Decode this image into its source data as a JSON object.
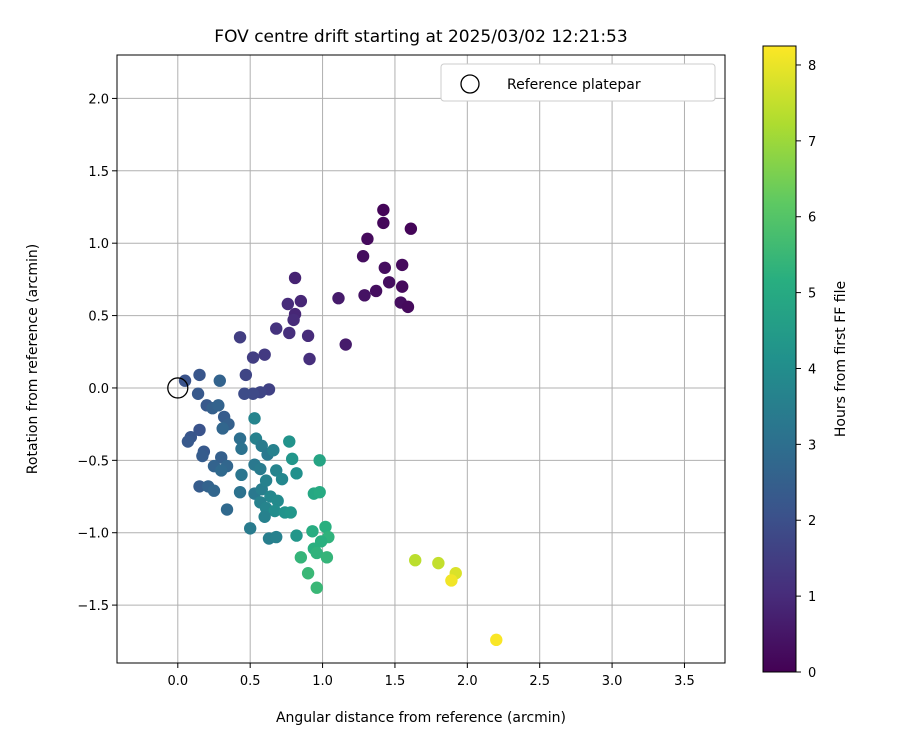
{
  "chart_data": {
    "type": "scatter",
    "title": "FOV centre drift starting at 2025/03/02 12:21:53",
    "xlabel": "Angular distance from reference (arcmin)",
    "ylabel": "Rotation from reference (arcmin)",
    "xlim": [
      -0.42,
      3.78
    ],
    "ylim": [
      -1.9,
      2.3
    ],
    "xticks": [
      "0.0",
      "0.5",
      "1.0",
      "1.5",
      "2.0",
      "2.5",
      "3.0",
      "3.5"
    ],
    "xtick_values": [
      0,
      0.5,
      1.0,
      1.5,
      2.0,
      2.5,
      3.0,
      3.5
    ],
    "yticks": [
      "2.0",
      "1.5",
      "1.0",
      "0.5",
      "0.0",
      "−0.5",
      "−1.0",
      "−1.5"
    ],
    "ytick_values": [
      2.0,
      1.5,
      1.0,
      0.5,
      0.0,
      -0.5,
      -1.0,
      -1.5
    ],
    "grid": true,
    "legend": {
      "label": "Reference platepar",
      "placement": "top-right"
    },
    "reference_point": {
      "x": 0.0,
      "y": 0.0
    },
    "colorbar": {
      "label": "Hours from first FF file",
      "colormap": "viridis",
      "range": [
        0,
        8.25
      ],
      "ticks": [
        "0",
        "1",
        "2",
        "3",
        "4",
        "5",
        "6",
        "7",
        "8"
      ],
      "tick_values": [
        0,
        1,
        2,
        3,
        4,
        5,
        6,
        7,
        8
      ]
    },
    "points": [
      {
        "x": 1.42,
        "y": 1.23,
        "t": 0.1
      },
      {
        "x": 1.42,
        "y": 1.14,
        "t": 0.15
      },
      {
        "x": 1.61,
        "y": 1.1,
        "t": 0.1
      },
      {
        "x": 1.31,
        "y": 1.03,
        "t": 0.2
      },
      {
        "x": 1.28,
        "y": 0.91,
        "t": 0.3
      },
      {
        "x": 1.55,
        "y": 0.85,
        "t": 0.2
      },
      {
        "x": 1.43,
        "y": 0.83,
        "t": 0.3
      },
      {
        "x": 1.46,
        "y": 0.73,
        "t": 0.3
      },
      {
        "x": 1.55,
        "y": 0.7,
        "t": 0.2
      },
      {
        "x": 1.37,
        "y": 0.67,
        "t": 0.3
      },
      {
        "x": 1.29,
        "y": 0.64,
        "t": 0.4
      },
      {
        "x": 1.54,
        "y": 0.59,
        "t": 0.3
      },
      {
        "x": 1.59,
        "y": 0.56,
        "t": 0.2
      },
      {
        "x": 1.11,
        "y": 0.62,
        "t": 0.6
      },
      {
        "x": 1.16,
        "y": 0.3,
        "t": 0.6
      },
      {
        "x": 0.81,
        "y": 0.76,
        "t": 0.8
      },
      {
        "x": 0.85,
        "y": 0.6,
        "t": 0.9
      },
      {
        "x": 0.76,
        "y": 0.58,
        "t": 1.0
      },
      {
        "x": 0.81,
        "y": 0.51,
        "t": 0.9
      },
      {
        "x": 0.8,
        "y": 0.47,
        "t": 1.0
      },
      {
        "x": 0.68,
        "y": 0.41,
        "t": 1.2
      },
      {
        "x": 0.77,
        "y": 0.38,
        "t": 1.1
      },
      {
        "x": 0.9,
        "y": 0.36,
        "t": 1.0
      },
      {
        "x": 0.91,
        "y": 0.2,
        "t": 1.1
      },
      {
        "x": 0.43,
        "y": 0.35,
        "t": 1.5
      },
      {
        "x": 0.6,
        "y": 0.23,
        "t": 1.4
      },
      {
        "x": 0.52,
        "y": 0.21,
        "t": 1.5
      },
      {
        "x": 0.47,
        "y": 0.09,
        "t": 1.7
      },
      {
        "x": 0.63,
        "y": -0.01,
        "t": 1.6
      },
      {
        "x": 0.57,
        "y": -0.03,
        "t": 1.7
      },
      {
        "x": 0.52,
        "y": -0.04,
        "t": 1.8
      },
      {
        "x": 0.46,
        "y": -0.04,
        "t": 1.9
      },
      {
        "x": 0.15,
        "y": 0.09,
        "t": 2.2
      },
      {
        "x": 0.05,
        "y": 0.05,
        "t": 2.1
      },
      {
        "x": 0.14,
        "y": -0.04,
        "t": 2.3
      },
      {
        "x": 0.29,
        "y": 0.05,
        "t": 2.6
      },
      {
        "x": 0.2,
        "y": -0.12,
        "t": 2.3
      },
      {
        "x": 0.24,
        "y": -0.14,
        "t": 2.5
      },
      {
        "x": 0.28,
        "y": -0.12,
        "t": 2.6
      },
      {
        "x": 0.32,
        "y": -0.2,
        "t": 2.4
      },
      {
        "x": 0.35,
        "y": -0.25,
        "t": 2.5
      },
      {
        "x": 0.31,
        "y": -0.28,
        "t": 2.7
      },
      {
        "x": 0.15,
        "y": -0.29,
        "t": 2.1
      },
      {
        "x": 0.09,
        "y": -0.34,
        "t": 2.2
      },
      {
        "x": 0.07,
        "y": -0.37,
        "t": 2.3
      },
      {
        "x": 0.18,
        "y": -0.44,
        "t": 2.3
      },
      {
        "x": 0.17,
        "y": -0.47,
        "t": 2.4
      },
      {
        "x": 0.3,
        "y": -0.48,
        "t": 2.5
      },
      {
        "x": 0.25,
        "y": -0.54,
        "t": 2.6
      },
      {
        "x": 0.34,
        "y": -0.54,
        "t": 2.7
      },
      {
        "x": 0.3,
        "y": -0.57,
        "t": 2.8
      },
      {
        "x": 0.15,
        "y": -0.68,
        "t": 2.4
      },
      {
        "x": 0.21,
        "y": -0.68,
        "t": 2.6
      },
      {
        "x": 0.25,
        "y": -0.71,
        "t": 2.7
      },
      {
        "x": 0.34,
        "y": -0.84,
        "t": 2.8
      },
      {
        "x": 0.43,
        "y": -0.35,
        "t": 3.0
      },
      {
        "x": 0.44,
        "y": -0.42,
        "t": 3.1
      },
      {
        "x": 0.53,
        "y": -0.21,
        "t": 3.7
      },
      {
        "x": 0.54,
        "y": -0.35,
        "t": 3.6
      },
      {
        "x": 0.58,
        "y": -0.4,
        "t": 3.4
      },
      {
        "x": 0.62,
        "y": -0.46,
        "t": 3.3
      },
      {
        "x": 0.66,
        "y": -0.43,
        "t": 3.6
      },
      {
        "x": 0.77,
        "y": -0.37,
        "t": 4.2
      },
      {
        "x": 0.79,
        "y": -0.49,
        "t": 4.3
      },
      {
        "x": 0.53,
        "y": -0.53,
        "t": 3.3
      },
      {
        "x": 0.57,
        "y": -0.56,
        "t": 3.4
      },
      {
        "x": 0.44,
        "y": -0.6,
        "t": 3.2
      },
      {
        "x": 0.43,
        "y": -0.72,
        "t": 3.1
      },
      {
        "x": 0.53,
        "y": -0.73,
        "t": 3.3
      },
      {
        "x": 0.58,
        "y": -0.7,
        "t": 3.5
      },
      {
        "x": 0.61,
        "y": -0.64,
        "t": 3.6
      },
      {
        "x": 0.68,
        "y": -0.57,
        "t": 3.7
      },
      {
        "x": 0.72,
        "y": -0.63,
        "t": 3.8
      },
      {
        "x": 0.82,
        "y": -0.59,
        "t": 4.1
      },
      {
        "x": 0.64,
        "y": -0.75,
        "t": 3.8
      },
      {
        "x": 0.69,
        "y": -0.78,
        "t": 3.9
      },
      {
        "x": 0.57,
        "y": -0.79,
        "t": 3.6
      },
      {
        "x": 0.61,
        "y": -0.83,
        "t": 3.7
      },
      {
        "x": 0.67,
        "y": -0.85,
        "t": 4.0
      },
      {
        "x": 0.74,
        "y": -0.86,
        "t": 4.2
      },
      {
        "x": 0.78,
        "y": -0.86,
        "t": 4.3
      },
      {
        "x": 0.6,
        "y": -0.89,
        "t": 3.6
      },
      {
        "x": 0.5,
        "y": -0.97,
        "t": 3.4
      },
      {
        "x": 0.63,
        "y": -1.04,
        "t": 3.5
      },
      {
        "x": 0.68,
        "y": -1.03,
        "t": 3.6
      },
      {
        "x": 0.82,
        "y": -1.02,
        "t": 4.3
      },
      {
        "x": 0.98,
        "y": -0.5,
        "t": 4.8
      },
      {
        "x": 0.94,
        "y": -0.73,
        "t": 4.9
      },
      {
        "x": 0.98,
        "y": -0.72,
        "t": 5.0
      },
      {
        "x": 0.93,
        "y": -0.99,
        "t": 5.1
      },
      {
        "x": 1.02,
        "y": -0.96,
        "t": 5.2
      },
      {
        "x": 1.04,
        "y": -1.03,
        "t": 5.3
      },
      {
        "x": 0.99,
        "y": -1.06,
        "t": 5.2
      },
      {
        "x": 0.94,
        "y": -1.11,
        "t": 5.2
      },
      {
        "x": 0.96,
        "y": -1.14,
        "t": 5.3
      },
      {
        "x": 0.85,
        "y": -1.17,
        "t": 5.4
      },
      {
        "x": 1.03,
        "y": -1.17,
        "t": 5.4
      },
      {
        "x": 0.9,
        "y": -1.28,
        "t": 5.5
      },
      {
        "x": 0.96,
        "y": -1.38,
        "t": 5.5
      },
      {
        "x": 1.64,
        "y": -1.19,
        "t": 7.4
      },
      {
        "x": 1.8,
        "y": -1.21,
        "t": 7.5
      },
      {
        "x": 1.92,
        "y": -1.28,
        "t": 7.8
      },
      {
        "x": 1.89,
        "y": -1.33,
        "t": 8.1
      },
      {
        "x": 2.2,
        "y": -1.74,
        "t": 8.2
      }
    ]
  }
}
